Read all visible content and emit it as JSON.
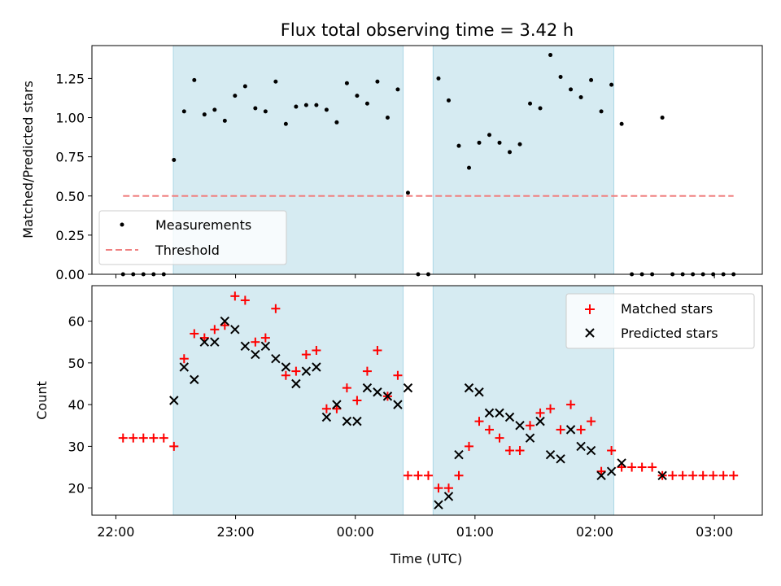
{
  "chart_data": [
    {
      "type": "scatter",
      "title": "Flux total observing time = 3.42 h",
      "xlabel": "",
      "ylabel": "Matched/Predicted stars",
      "x_unit": "hours after 22:00 UTC",
      "xlim": [
        -0.2,
        5.4
      ],
      "ylim": [
        0.0,
        1.46
      ],
      "yticks": [
        "0.00",
        "0.25",
        "0.50",
        "0.75",
        "1.00",
        "1.25"
      ],
      "shaded_intervals": [
        [
          0.48,
          2.4
        ],
        [
          2.65,
          4.16
        ]
      ],
      "shade_color": "#add8e6",
      "legend": {
        "position": "lower-left",
        "entries": [
          "Measurements",
          "Threshold"
        ]
      },
      "threshold": {
        "name": "Threshold",
        "value": 0.5,
        "x_range": [
          0.06,
          5.16
        ],
        "color": "#f08080"
      },
      "series": [
        {
          "name": "Measurements",
          "color": "#000000",
          "x": [
            0.06,
            0.145,
            0.23,
            0.315,
            0.4,
            0.485,
            0.57,
            0.655,
            0.74,
            0.825,
            0.91,
            0.995,
            1.08,
            1.165,
            1.25,
            1.335,
            1.42,
            1.505,
            1.59,
            1.675,
            1.76,
            1.845,
            1.93,
            2.015,
            2.1,
            2.185,
            2.27,
            2.355,
            2.44,
            2.525,
            2.61,
            2.695,
            2.78,
            2.865,
            2.95,
            3.035,
            3.12,
            3.205,
            3.29,
            3.375,
            3.46,
            3.545,
            3.63,
            3.715,
            3.8,
            3.885,
            3.97,
            4.055,
            4.14,
            4.225,
            4.31,
            4.395,
            4.48,
            4.565,
            4.65,
            4.735,
            4.82,
            4.905,
            4.99,
            5.075,
            5.16
          ],
          "y": [
            0.0,
            0.0,
            0.0,
            0.0,
            0.0,
            0.73,
            1.04,
            1.24,
            1.02,
            1.05,
            0.98,
            1.14,
            1.2,
            1.06,
            1.04,
            1.23,
            0.96,
            1.07,
            1.08,
            1.08,
            1.05,
            0.97,
            1.22,
            1.14,
            1.09,
            1.23,
            1.0,
            1.18,
            0.52,
            0.0,
            0.0,
            1.25,
            1.11,
            0.82,
            0.68,
            0.84,
            0.89,
            0.84,
            0.78,
            0.83,
            1.09,
            1.06,
            1.4,
            1.26,
            1.18,
            1.13,
            1.24,
            1.04,
            1.21,
            0.96,
            0.0,
            0.0,
            0.0,
            1.0,
            0.0,
            0.0,
            0.0,
            0.0,
            0.0,
            0.0,
            0.0
          ]
        }
      ]
    },
    {
      "type": "scatter",
      "title": "",
      "xlabel": "Time (UTC)",
      "ylabel": "Count",
      "x_unit": "hours after 22:00 UTC",
      "xlim": [
        -0.2,
        5.4
      ],
      "ylim": [
        13.5,
        68.5
      ],
      "yticks": [
        "20",
        "30",
        "40",
        "50",
        "60"
      ],
      "xticks": [
        {
          "value": 0,
          "label": "22:00"
        },
        {
          "value": 1,
          "label": "23:00"
        },
        {
          "value": 2,
          "label": "00:00"
        },
        {
          "value": 3,
          "label": "01:00"
        },
        {
          "value": 4,
          "label": "02:00"
        },
        {
          "value": 5,
          "label": "03:00"
        }
      ],
      "shaded_intervals": [
        [
          0.48,
          2.4
        ],
        [
          2.65,
          4.16
        ]
      ],
      "shade_color": "#add8e6",
      "legend": {
        "position": "top-right",
        "entries": [
          "Matched stars",
          "Predicted stars"
        ]
      },
      "series": [
        {
          "name": "Matched stars",
          "marker": "plus",
          "color": "#ff0000",
          "x": [
            0.06,
            0.145,
            0.23,
            0.315,
            0.4,
            0.485,
            0.57,
            0.655,
            0.74,
            0.825,
            0.91,
            0.995,
            1.08,
            1.165,
            1.25,
            1.335,
            1.42,
            1.505,
            1.59,
            1.675,
            1.76,
            1.845,
            1.93,
            2.015,
            2.1,
            2.185,
            2.27,
            2.355,
            2.44,
            2.525,
            2.61,
            2.695,
            2.78,
            2.865,
            2.95,
            3.035,
            3.12,
            3.205,
            3.29,
            3.375,
            3.46,
            3.545,
            3.63,
            3.715,
            3.8,
            3.885,
            3.97,
            4.055,
            4.14,
            4.225,
            4.31,
            4.395,
            4.48,
            4.565,
            4.65,
            4.735,
            4.82,
            4.905,
            4.99,
            5.075,
            5.16
          ],
          "y": [
            32,
            32,
            32,
            32,
            32,
            30,
            51,
            57,
            56,
            58,
            59,
            66,
            65,
            55,
            56,
            63,
            47,
            48,
            52,
            53,
            39,
            39,
            44,
            41,
            48,
            53,
            42,
            47,
            23,
            23,
            23,
            20,
            20,
            23,
            30,
            36,
            34,
            32,
            29,
            29,
            35,
            38,
            39,
            34,
            40,
            34,
            36,
            24,
            29,
            25,
            25,
            25,
            25,
            23,
            23,
            23,
            23,
            23,
            23,
            23,
            23
          ]
        },
        {
          "name": "Predicted stars",
          "marker": "x",
          "color": "#000000",
          "x": [
            0.485,
            0.57,
            0.655,
            0.74,
            0.825,
            0.91,
            0.995,
            1.08,
            1.165,
            1.25,
            1.335,
            1.42,
            1.505,
            1.59,
            1.675,
            1.76,
            1.845,
            1.93,
            2.015,
            2.1,
            2.185,
            2.27,
            2.355,
            2.44,
            2.695,
            2.78,
            2.865,
            2.95,
            3.035,
            3.12,
            3.205,
            3.29,
            3.375,
            3.46,
            3.545,
            3.63,
            3.715,
            3.8,
            3.885,
            3.97,
            4.055,
            4.14,
            4.225,
            4.565
          ],
          "y": [
            41,
            49,
            46,
            55,
            55,
            60,
            58,
            54,
            52,
            54,
            51,
            49,
            45,
            48,
            49,
            37,
            40,
            36,
            36,
            44,
            43,
            42,
            40,
            44,
            16,
            18,
            28,
            44,
            43,
            38,
            38,
            37,
            35,
            32,
            36,
            28,
            27,
            34,
            30,
            29,
            23,
            24,
            26,
            23
          ]
        }
      ]
    }
  ]
}
